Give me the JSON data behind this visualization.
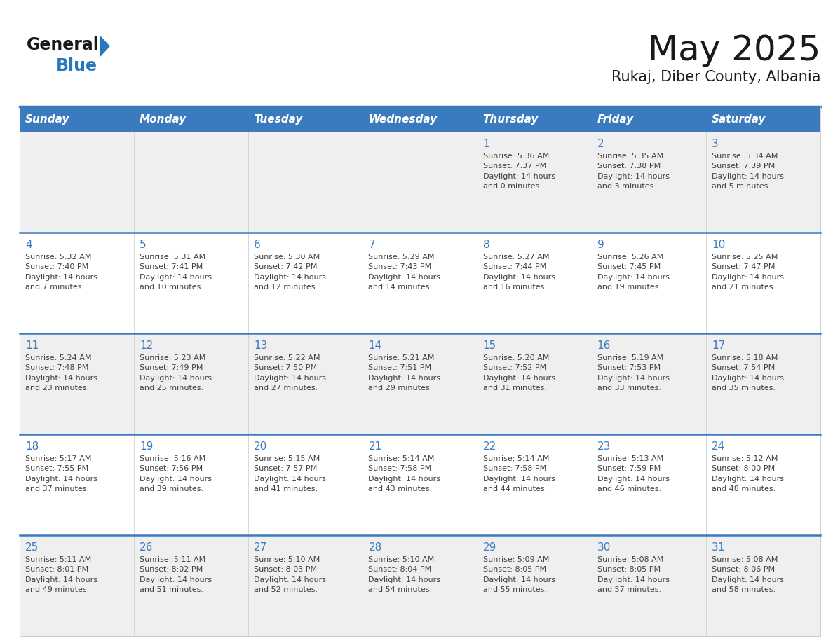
{
  "title": "May 2025",
  "subtitle": "Rukaj, Diber County, Albania",
  "days_of_week": [
    "Sunday",
    "Monday",
    "Tuesday",
    "Wednesday",
    "Thursday",
    "Friday",
    "Saturday"
  ],
  "header_bg": "#3a7bbf",
  "header_text": "#ffffff",
  "row_bg_week1": "#efefef",
  "row_bg_week2": "#ffffff",
  "row_bg_week3": "#efefef",
  "row_bg_week4": "#ffffff",
  "row_bg_week5": "#efefef",
  "cell_border": "#c8c8c8",
  "week_sep_color": "#3a7bbf",
  "day_number_color": "#3a7bbf",
  "info_text_color": "#404040",
  "title_color": "#1a1a1a",
  "subtitle_color": "#1a1a1a",
  "logo_general_color": "#1a1a1a",
  "logo_blue_color": "#2878c0",
  "calendar_data": [
    [
      {
        "day": null,
        "info": ""
      },
      {
        "day": null,
        "info": ""
      },
      {
        "day": null,
        "info": ""
      },
      {
        "day": null,
        "info": ""
      },
      {
        "day": 1,
        "info": "Sunrise: 5:36 AM\nSunset: 7:37 PM\nDaylight: 14 hours\nand 0 minutes."
      },
      {
        "day": 2,
        "info": "Sunrise: 5:35 AM\nSunset: 7:38 PM\nDaylight: 14 hours\nand 3 minutes."
      },
      {
        "day": 3,
        "info": "Sunrise: 5:34 AM\nSunset: 7:39 PM\nDaylight: 14 hours\nand 5 minutes."
      }
    ],
    [
      {
        "day": 4,
        "info": "Sunrise: 5:32 AM\nSunset: 7:40 PM\nDaylight: 14 hours\nand 7 minutes."
      },
      {
        "day": 5,
        "info": "Sunrise: 5:31 AM\nSunset: 7:41 PM\nDaylight: 14 hours\nand 10 minutes."
      },
      {
        "day": 6,
        "info": "Sunrise: 5:30 AM\nSunset: 7:42 PM\nDaylight: 14 hours\nand 12 minutes."
      },
      {
        "day": 7,
        "info": "Sunrise: 5:29 AM\nSunset: 7:43 PM\nDaylight: 14 hours\nand 14 minutes."
      },
      {
        "day": 8,
        "info": "Sunrise: 5:27 AM\nSunset: 7:44 PM\nDaylight: 14 hours\nand 16 minutes."
      },
      {
        "day": 9,
        "info": "Sunrise: 5:26 AM\nSunset: 7:45 PM\nDaylight: 14 hours\nand 19 minutes."
      },
      {
        "day": 10,
        "info": "Sunrise: 5:25 AM\nSunset: 7:47 PM\nDaylight: 14 hours\nand 21 minutes."
      }
    ],
    [
      {
        "day": 11,
        "info": "Sunrise: 5:24 AM\nSunset: 7:48 PM\nDaylight: 14 hours\nand 23 minutes."
      },
      {
        "day": 12,
        "info": "Sunrise: 5:23 AM\nSunset: 7:49 PM\nDaylight: 14 hours\nand 25 minutes."
      },
      {
        "day": 13,
        "info": "Sunrise: 5:22 AM\nSunset: 7:50 PM\nDaylight: 14 hours\nand 27 minutes."
      },
      {
        "day": 14,
        "info": "Sunrise: 5:21 AM\nSunset: 7:51 PM\nDaylight: 14 hours\nand 29 minutes."
      },
      {
        "day": 15,
        "info": "Sunrise: 5:20 AM\nSunset: 7:52 PM\nDaylight: 14 hours\nand 31 minutes."
      },
      {
        "day": 16,
        "info": "Sunrise: 5:19 AM\nSunset: 7:53 PM\nDaylight: 14 hours\nand 33 minutes."
      },
      {
        "day": 17,
        "info": "Sunrise: 5:18 AM\nSunset: 7:54 PM\nDaylight: 14 hours\nand 35 minutes."
      }
    ],
    [
      {
        "day": 18,
        "info": "Sunrise: 5:17 AM\nSunset: 7:55 PM\nDaylight: 14 hours\nand 37 minutes."
      },
      {
        "day": 19,
        "info": "Sunrise: 5:16 AM\nSunset: 7:56 PM\nDaylight: 14 hours\nand 39 minutes."
      },
      {
        "day": 20,
        "info": "Sunrise: 5:15 AM\nSunset: 7:57 PM\nDaylight: 14 hours\nand 41 minutes."
      },
      {
        "day": 21,
        "info": "Sunrise: 5:14 AM\nSunset: 7:58 PM\nDaylight: 14 hours\nand 43 minutes."
      },
      {
        "day": 22,
        "info": "Sunrise: 5:14 AM\nSunset: 7:58 PM\nDaylight: 14 hours\nand 44 minutes."
      },
      {
        "day": 23,
        "info": "Sunrise: 5:13 AM\nSunset: 7:59 PM\nDaylight: 14 hours\nand 46 minutes."
      },
      {
        "day": 24,
        "info": "Sunrise: 5:12 AM\nSunset: 8:00 PM\nDaylight: 14 hours\nand 48 minutes."
      }
    ],
    [
      {
        "day": 25,
        "info": "Sunrise: 5:11 AM\nSunset: 8:01 PM\nDaylight: 14 hours\nand 49 minutes."
      },
      {
        "day": 26,
        "info": "Sunrise: 5:11 AM\nSunset: 8:02 PM\nDaylight: 14 hours\nand 51 minutes."
      },
      {
        "day": 27,
        "info": "Sunrise: 5:10 AM\nSunset: 8:03 PM\nDaylight: 14 hours\nand 52 minutes."
      },
      {
        "day": 28,
        "info": "Sunrise: 5:10 AM\nSunset: 8:04 PM\nDaylight: 14 hours\nand 54 minutes."
      },
      {
        "day": 29,
        "info": "Sunrise: 5:09 AM\nSunset: 8:05 PM\nDaylight: 14 hours\nand 55 minutes."
      },
      {
        "day": 30,
        "info": "Sunrise: 5:08 AM\nSunset: 8:05 PM\nDaylight: 14 hours\nand 57 minutes."
      },
      {
        "day": 31,
        "info": "Sunrise: 5:08 AM\nSunset: 8:06 PM\nDaylight: 14 hours\nand 58 minutes."
      }
    ]
  ],
  "row_bgs": [
    "#efefef",
    "#ffffff",
    "#efefef",
    "#ffffff",
    "#efefef"
  ]
}
